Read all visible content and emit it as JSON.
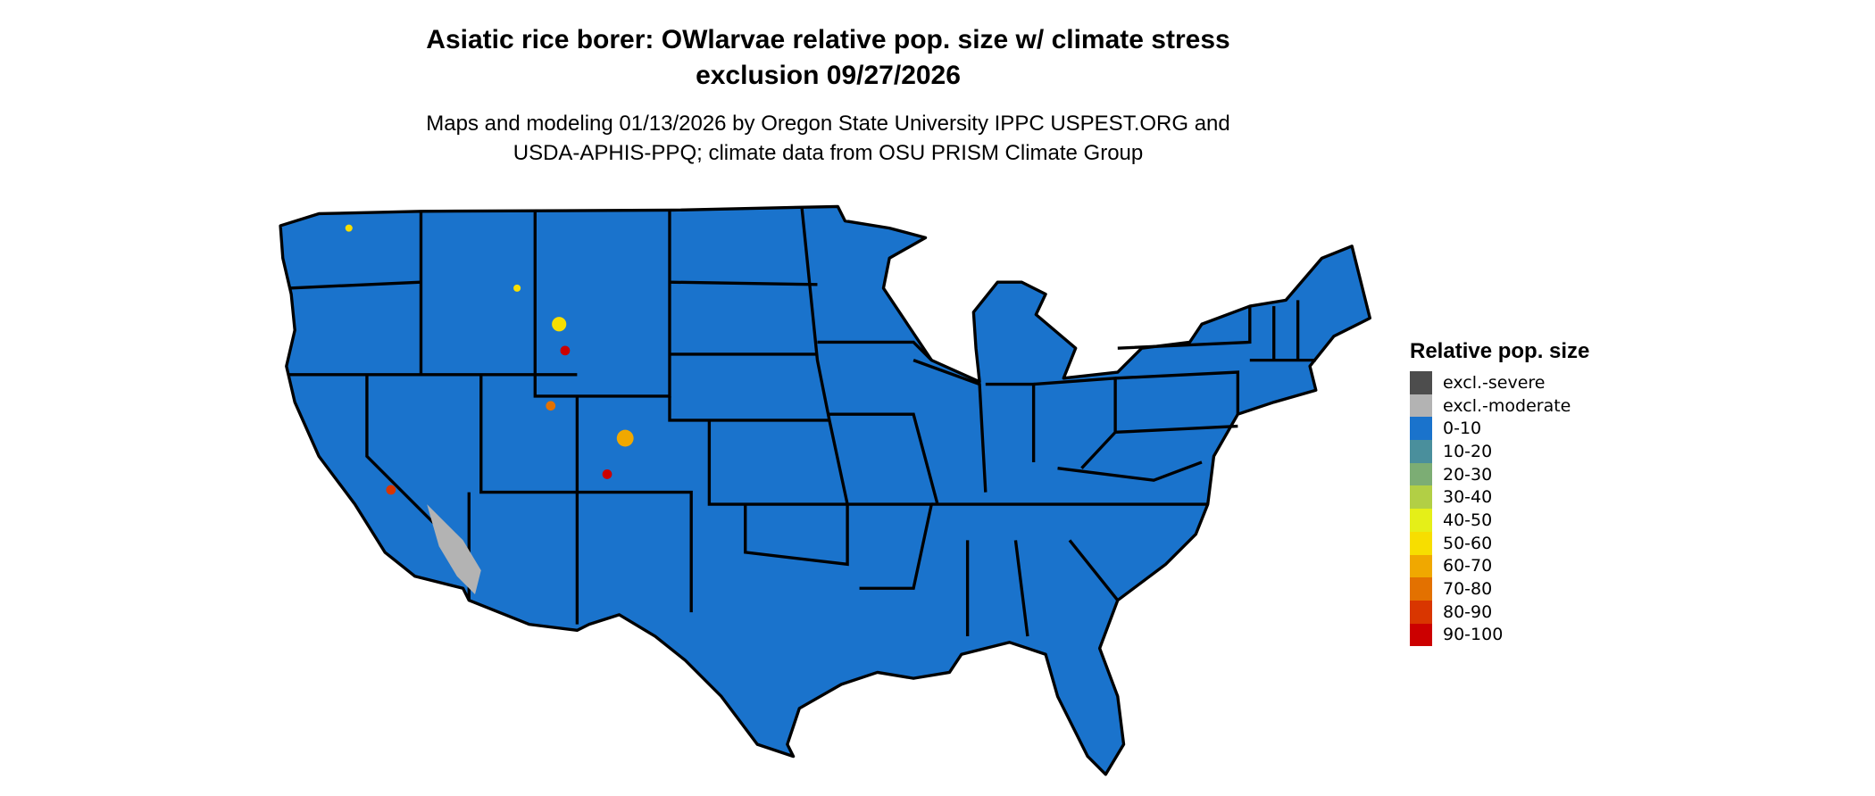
{
  "title": {
    "line1": "Asiatic rice borer: OWlarvae relative pop. size w/ climate stress",
    "line2": "exclusion 09/27/2026"
  },
  "subtitle": {
    "line1": "Maps and modeling 01/13/2026 by Oregon State University IPPC USPEST.ORG and",
    "line2": "USDA-APHIS-PPQ; climate data from OSU PRISM Climate Group"
  },
  "map": {
    "region": "Contiguous United States",
    "dominant_class": "0-10",
    "base_color": "#1a73cc",
    "border_color": "#000000"
  },
  "legend": {
    "title": "Relative pop. size",
    "items": [
      {
        "label": "excl.-severe",
        "color": "#4d4d4d"
      },
      {
        "label": "excl.-moderate",
        "color": "#b3b3b3"
      },
      {
        "label": "0-10",
        "color": "#1a73cc"
      },
      {
        "label": "10-20",
        "color": "#4a8f9c"
      },
      {
        "label": "20-30",
        "color": "#7cad74"
      },
      {
        "label": "30-40",
        "color": "#b2cf45"
      },
      {
        "label": "40-50",
        "color": "#e5ef18"
      },
      {
        "label": "50-60",
        "color": "#f7de00"
      },
      {
        "label": "60-70",
        "color": "#f0a800"
      },
      {
        "label": "70-80",
        "color": "#e37100"
      },
      {
        "label": "80-90",
        "color": "#d93600"
      },
      {
        "label": "90-100",
        "color": "#cc0000"
      }
    ]
  }
}
